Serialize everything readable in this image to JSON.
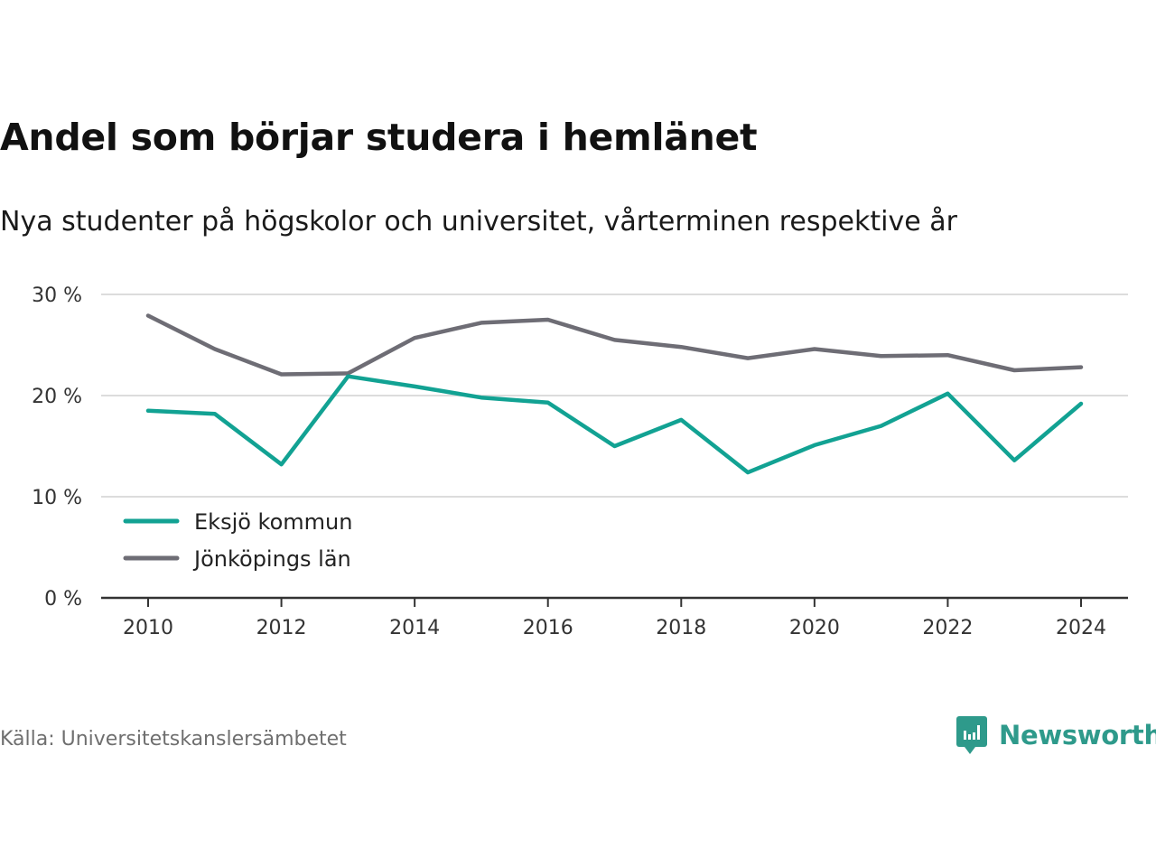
{
  "title": "Andel som börjar studera i hemlänet",
  "subtitle": "Nya studenter på högskolor och universitet, vårterminen respektive år",
  "source": "Källa: Universitetskanslersämbetet",
  "brand": {
    "name": "Newsworthy",
    "icon": "newsworthy-logo-icon",
    "color": "#2e9a8b"
  },
  "colors": {
    "series1": "#12a293",
    "series2": "#6e6d75",
    "grid": "#dcdcdc",
    "axis": "#333333"
  },
  "chart_data": {
    "type": "line",
    "x": [
      2010,
      2011,
      2012,
      2013,
      2014,
      2015,
      2016,
      2017,
      2018,
      2019,
      2020,
      2021,
      2022,
      2023,
      2024
    ],
    "series": [
      {
        "name": "Eksjö kommun",
        "values": [
          18.5,
          18.2,
          13.2,
          21.9,
          20.9,
          19.8,
          19.3,
          15.0,
          17.6,
          12.4,
          15.1,
          17.0,
          20.2,
          13.6,
          19.2
        ]
      },
      {
        "name": "Jönköpings län",
        "values": [
          27.9,
          24.6,
          22.1,
          22.2,
          25.7,
          27.2,
          27.5,
          25.5,
          24.8,
          23.7,
          24.6,
          23.9,
          24.0,
          22.5,
          22.8
        ]
      }
    ],
    "yticks": [
      0,
      10,
      20,
      30
    ],
    "ytick_labels": [
      "0 %",
      "10 %",
      "20 %",
      "30 %"
    ],
    "xticks": [
      2010,
      2012,
      2014,
      2016,
      2018,
      2020,
      2022,
      2024
    ],
    "xtick_labels": [
      "2010",
      "2012",
      "2014",
      "2016",
      "2018",
      "2020",
      "2022",
      "2024"
    ],
    "ylim": [
      0,
      30
    ],
    "xlim": [
      2010,
      2024
    ],
    "grid": true,
    "legend": "bottom-left"
  }
}
